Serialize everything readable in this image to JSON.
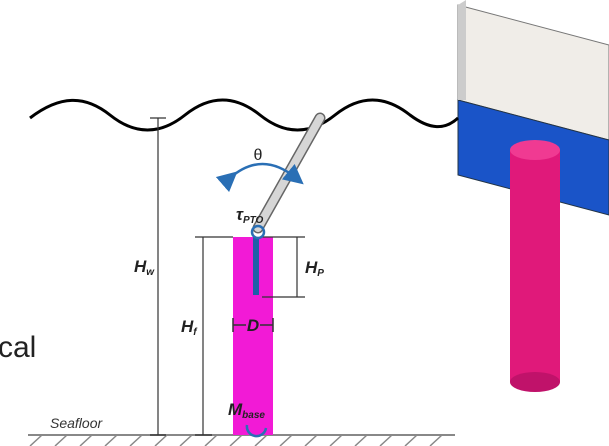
{
  "labels": {
    "theta": "θ",
    "tau_pto": {
      "symbol": "τ",
      "subscript": "PTO"
    },
    "h_w": {
      "symbol": "H",
      "subscript": "w"
    },
    "h_f": {
      "symbol": "H",
      "subscript": "f"
    },
    "h_p": {
      "symbol": "H",
      "subscript": "P"
    },
    "d": "D",
    "m_base": {
      "symbol": "M",
      "subscript": "base"
    },
    "seafloor": "Seafloor",
    "side_text": "cal"
  }
}
